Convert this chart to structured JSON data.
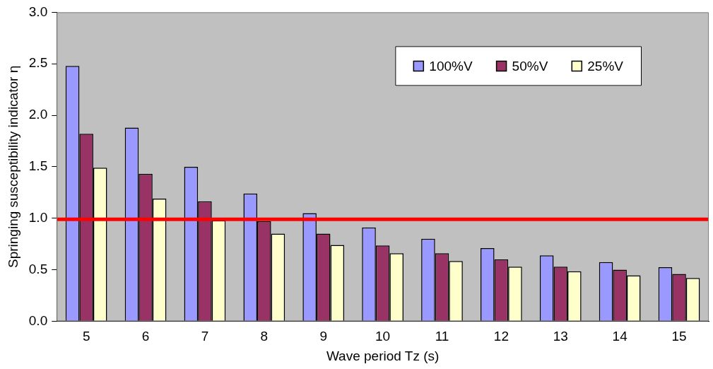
{
  "chart_data": {
    "type": "bar",
    "xlabel": "Wave period Tz (s)",
    "ylabel": "Springing susceptibility indicator η",
    "categories": [
      "5",
      "6",
      "7",
      "8",
      "9",
      "10",
      "11",
      "12",
      "13",
      "14",
      "15"
    ],
    "series": [
      {
        "name": "100%V",
        "color": "#9999ff",
        "values": [
          2.48,
          1.88,
          1.5,
          1.24,
          1.05,
          0.91,
          0.8,
          0.71,
          0.64,
          0.575,
          0.525
        ]
      },
      {
        "name": "50%V",
        "color": "#993366",
        "values": [
          1.82,
          1.43,
          1.165,
          0.97,
          0.85,
          0.735,
          0.66,
          0.6,
          0.53,
          0.5,
          0.46
        ]
      },
      {
        "name": "25%V",
        "color": "#ffffcc",
        "values": [
          1.49,
          1.19,
          0.98,
          0.85,
          0.74,
          0.66,
          0.585,
          0.53,
          0.485,
          0.445,
          0.42
        ]
      }
    ],
    "ylim": [
      0,
      3
    ],
    "yticks": [
      {
        "value": 0,
        "label": "0.0"
      },
      {
        "value": 0.5,
        "label": "0.5"
      },
      {
        "value": 1,
        "label": "1.0"
      },
      {
        "value": 1.5,
        "label": "1.5"
      },
      {
        "value": 2,
        "label": "2.0"
      },
      {
        "value": 2.5,
        "label": "2.5"
      },
      {
        "value": 3,
        "label": "3.0"
      }
    ],
    "ref_lines": [
      {
        "axis": "y",
        "value": 0.99,
        "color": "#ff0000"
      }
    ],
    "grid": false,
    "legend": "top right"
  }
}
